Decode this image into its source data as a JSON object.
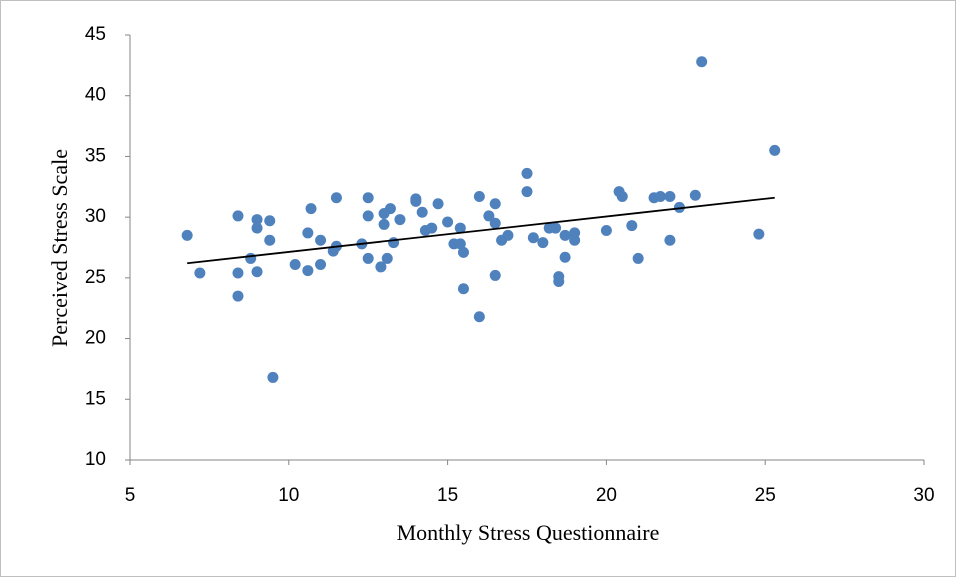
{
  "chart_data": {
    "type": "scatter",
    "x_label": "Monthly Stress Questionnaire",
    "y_label": "Perceived Stress Scale",
    "xlim": [
      5,
      30
    ],
    "xticks": [
      5,
      10,
      15,
      20,
      25,
      30
    ],
    "ylim": [
      10,
      45
    ],
    "yticks": [
      10,
      15,
      20,
      25,
      30,
      35,
      40,
      45
    ],
    "color": "#4f81bd",
    "trendline_color": "#000000",
    "trendline": {
      "x": [
        6.8,
        25.3
      ],
      "y": [
        26.2,
        31.6
      ]
    },
    "x": [
      6.8,
      7.2,
      8.4,
      8.4,
      8.4,
      8.8,
      9.0,
      9.0,
      9.0,
      9.4,
      9.4,
      9.5,
      10.2,
      10.6,
      10.6,
      10.7,
      11.0,
      11.0,
      11.4,
      11.5,
      11.5,
      12.3,
      12.5,
      12.5,
      12.5,
      12.9,
      13.0,
      13.0,
      13.1,
      13.2,
      13.3,
      13.5,
      14.0,
      14.0,
      14.2,
      14.3,
      14.5,
      14.7,
      15.0,
      15.2,
      15.4,
      15.4,
      15.5,
      15.5,
      16.0,
      16.0,
      16.3,
      16.5,
      16.5,
      16.5,
      16.7,
      16.9,
      17.5,
      17.5,
      17.7,
      18.0,
      18.2,
      18.4,
      18.5,
      18.5,
      18.7,
      18.7,
      19.0,
      19.0,
      20.0,
      20.4,
      20.5,
      20.8,
      21.0,
      21.5,
      21.7,
      22.0,
      22.0,
      22.3,
      22.8,
      23.0,
      24.8,
      25.3
    ],
    "values": [
      28.5,
      25.4,
      30.1,
      25.4,
      23.5,
      26.6,
      29.8,
      29.1,
      25.5,
      28.1,
      29.7,
      16.8,
      26.1,
      25.6,
      28.7,
      30.7,
      28.1,
      26.1,
      27.2,
      31.6,
      27.6,
      27.8,
      31.6,
      30.1,
      26.6,
      25.9,
      30.3,
      29.4,
      26.6,
      30.7,
      27.9,
      29.8,
      31.5,
      31.3,
      30.4,
      28.9,
      29.1,
      31.1,
      29.6,
      27.8,
      29.1,
      27.8,
      27.1,
      24.1,
      31.7,
      21.8,
      30.1,
      29.5,
      31.1,
      25.2,
      28.1,
      28.5,
      33.6,
      32.1,
      28.3,
      27.9,
      29.1,
      29.1,
      25.1,
      24.7,
      28.5,
      26.7,
      28.7,
      28.1,
      28.9,
      32.1,
      31.7,
      29.3,
      26.6,
      31.6,
      31.7,
      31.7,
      28.1,
      30.8,
      31.8,
      42.8,
      28.6,
      35.5
    ]
  }
}
